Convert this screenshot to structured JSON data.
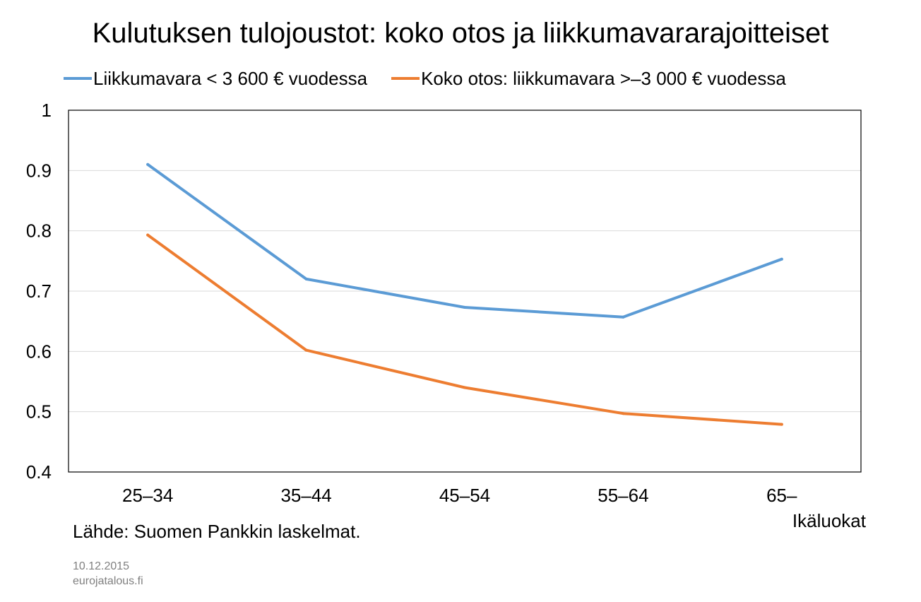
{
  "chart_data": {
    "type": "line",
    "title": "Kulutuksen tulojoustot: koko otos ja liikkumavararajoitteiset",
    "xlabel": "Ikäluokat",
    "ylabel": "",
    "categories": [
      "25–34",
      "35–44",
      "45–54",
      "55–64",
      "65–"
    ],
    "series": [
      {
        "name": "Liikkumavara < 3 600 € vuodessa",
        "color": "#5b9bd5",
        "values": [
          0.91,
          0.72,
          0.673,
          0.657,
          0.753
        ]
      },
      {
        "name": "Koko otos: liikkumavara >–3 000 € vuodessa",
        "color": "#ed7d31",
        "values": [
          0.793,
          0.602,
          0.54,
          0.497,
          0.479
        ]
      }
    ],
    "ylim": [
      0.4,
      1
    ],
    "yticks": [
      "0.4",
      "0.5",
      "0.6",
      "0.7",
      "0.8",
      "0.9",
      "1"
    ],
    "grid": true,
    "legend_position": "top"
  },
  "source": "Lähde: Suomen Pankkin laskelmat.",
  "footer": {
    "date": "10.12.2015",
    "site": "eurojatalous.fi"
  }
}
